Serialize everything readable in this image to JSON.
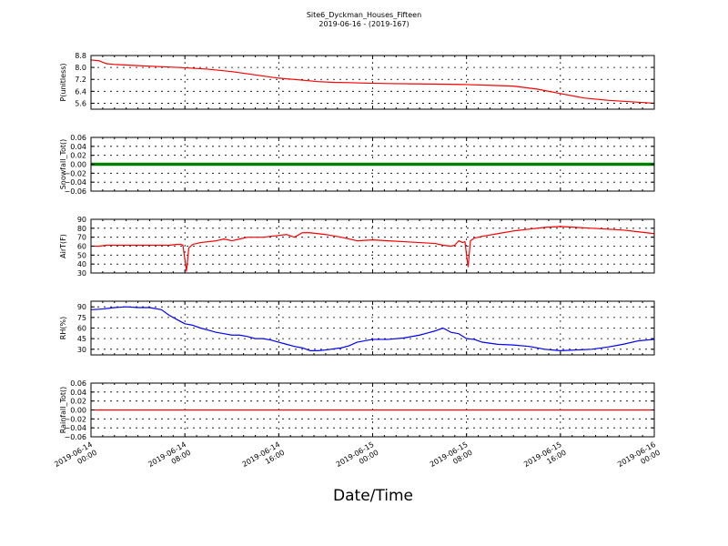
{
  "figure": {
    "title": "Site6_Dyckman_Houses_Fifteen",
    "subtitle": "2019-06-16 - (2019-167)",
    "xlabel": "Date/Time"
  },
  "chart_data": [
    {
      "type": "line",
      "ylabel": "P(unitless)",
      "ylim": [
        5.2,
        8.8
      ],
      "yticks": [
        8.8,
        8.0,
        7.2,
        6.4,
        5.6
      ],
      "ytick_labels": [
        "8.8",
        "8.0",
        "7.2",
        "6.4",
        "5.6"
      ],
      "grid": true,
      "series": [
        {
          "color": "#ff0000",
          "x": [
            0,
            2,
            3,
            4,
            6,
            12,
            18,
            24,
            30,
            36,
            42,
            48,
            54,
            58,
            62,
            66,
            70,
            76,
            82,
            90,
            96,
            102,
            108,
            114,
            120,
            126,
            132,
            138,
            144
          ],
          "y": [
            8.5,
            8.45,
            8.35,
            8.25,
            8.2,
            8.12,
            8.05,
            7.98,
            7.88,
            7.72,
            7.5,
            7.28,
            7.15,
            7.05,
            7.0,
            6.98,
            6.95,
            6.92,
            6.9,
            6.88,
            6.85,
            6.8,
            6.75,
            6.55,
            6.25,
            5.95,
            5.8,
            5.7,
            5.6
          ]
        }
      ]
    },
    {
      "type": "scatter",
      "ylabel": "Snowfall_Tot()",
      "ylim": [
        -0.06,
        0.06
      ],
      "yticks": [
        0.06,
        0.04,
        0.02,
        0.0,
        -0.02,
        -0.04,
        -0.06
      ],
      "ytick_labels": [
        "0.06",
        "0.04",
        "0.02",
        "0.00",
        "−0.02",
        "−0.04",
        "−0.06"
      ],
      "grid": true,
      "series": [
        {
          "color": "#008000",
          "constant": 0.0,
          "x_start": 0,
          "x_end": 144,
          "x_step": 0.25
        }
      ]
    },
    {
      "type": "line",
      "ylabel": "AirT(F)",
      "ylim": [
        30,
        90
      ],
      "yticks": [
        90,
        80,
        70,
        60,
        50,
        40,
        30
      ],
      "ytick_labels": [
        "90",
        "80",
        "70",
        "60",
        "50",
        "40",
        "30"
      ],
      "grid": true,
      "series": [
        {
          "color": "#ff0000",
          "x": [
            0,
            2,
            4,
            8,
            12,
            16,
            18,
            20,
            22,
            23,
            23.5,
            24,
            24.4,
            25,
            26,
            28,
            32,
            34,
            36,
            38,
            40,
            44,
            48,
            50,
            52,
            54,
            56,
            60,
            64,
            68,
            72,
            76,
            80,
            84,
            88,
            90,
            92,
            93,
            94,
            95,
            95.6,
            96,
            96.4,
            97,
            98,
            100,
            104,
            108,
            112,
            116,
            120,
            124,
            128,
            132,
            136,
            140,
            144
          ],
          "y": [
            60,
            60,
            61,
            61,
            61,
            61,
            61,
            61,
            62,
            62,
            61,
            45,
            32,
            58,
            62,
            64,
            66,
            68,
            66,
            68,
            70,
            70,
            72,
            73,
            70,
            75,
            75,
            73,
            70,
            66,
            67,
            66,
            65,
            64,
            63,
            61,
            60,
            61,
            66,
            64,
            65,
            50,
            37,
            66,
            69,
            71,
            74,
            77,
            79,
            81,
            82,
            81,
            80,
            79,
            78,
            76,
            74
          ]
        }
      ]
    },
    {
      "type": "line",
      "ylabel": "RH(%)",
      "ylim": [
        22,
        98
      ],
      "yticks": [
        90,
        75,
        60,
        45,
        30
      ],
      "ytick_labels": [
        "90",
        "75",
        "60",
        "45",
        "30"
      ],
      "grid": true,
      "series": [
        {
          "color": "#0000ff",
          "x": [
            0,
            3,
            6,
            9,
            12,
            15,
            18,
            20,
            22,
            24,
            26,
            28,
            30,
            32,
            34,
            36,
            38,
            40,
            42,
            44,
            46,
            48,
            50,
            52,
            54,
            56,
            58,
            60,
            64,
            66,
            68,
            72,
            76,
            80,
            84,
            86,
            88,
            90,
            92,
            94,
            96,
            98,
            100,
            104,
            108,
            112,
            116,
            120,
            124,
            128,
            132,
            136,
            140,
            144
          ],
          "y": [
            86,
            87,
            89,
            90,
            89,
            89,
            86,
            78,
            72,
            66,
            64,
            60,
            57,
            54,
            52,
            50,
            50,
            48,
            45,
            45,
            43,
            40,
            37,
            34,
            32,
            28,
            28,
            29,
            32,
            35,
            40,
            44,
            44,
            46,
            50,
            53,
            56,
            60,
            54,
            52,
            45,
            44,
            40,
            37,
            36,
            34,
            30,
            28,
            29,
            30,
            33,
            37,
            42,
            44
          ]
        }
      ]
    },
    {
      "type": "line",
      "ylabel": "Rainfall_Tot()",
      "ylim": [
        -0.06,
        0.06
      ],
      "yticks": [
        0.06,
        0.04,
        0.02,
        0.0,
        -0.02,
        -0.04,
        -0.06
      ],
      "ytick_labels": [
        "0.06",
        "0.04",
        "0.02",
        "0.00",
        "−0.02",
        "−0.04",
        "−0.06"
      ],
      "grid": true,
      "series": [
        {
          "color": "#ff0000",
          "x": [
            0,
            144
          ],
          "y": [
            0.0,
            0.0
          ]
        }
      ]
    }
  ],
  "x_axis": {
    "range_hours": [
      0,
      144
    ],
    "ticks_hours": [
      0,
      24,
      48,
      72,
      96,
      120,
      144
    ],
    "tick_labels": [
      [
        "2019-06-14",
        "00:00"
      ],
      [
        "2019-06-14",
        "08:00"
      ],
      [
        "2019-06-14",
        "16:00"
      ],
      [
        "2019-06-15",
        "00:00"
      ],
      [
        "2019-06-15",
        "08:00"
      ],
      [
        "2019-06-15",
        "16:00"
      ],
      [
        "2019-06-16",
        "00:00"
      ]
    ]
  }
}
